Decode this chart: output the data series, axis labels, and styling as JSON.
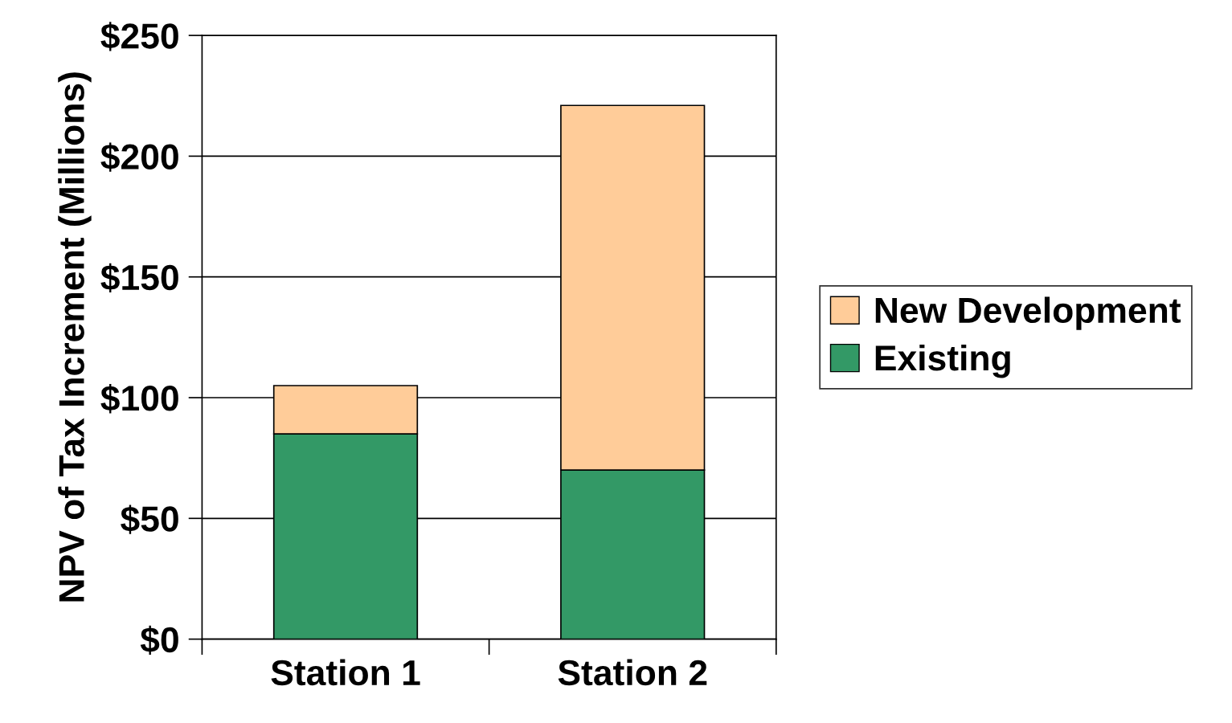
{
  "chart_data": {
    "type": "bar",
    "stacked": true,
    "ylabel": "NPV of Tax Increment (Millions)",
    "categories": [
      "Station 1",
      "Station 2"
    ],
    "series": [
      {
        "name": "Existing",
        "color": "#339966",
        "values": [
          85,
          70
        ]
      },
      {
        "name": "New Development",
        "color": "#ffcc99",
        "values": [
          20,
          151
        ]
      }
    ],
    "ylim": [
      0,
      250
    ],
    "yticks": [
      {
        "value": 0,
        "label": "$0"
      },
      {
        "value": 50,
        "label": "$50"
      },
      {
        "value": 100,
        "label": "$100"
      },
      {
        "value": 150,
        "label": "$150"
      },
      {
        "value": 200,
        "label": "$200"
      },
      {
        "value": 250,
        "label": "$250"
      }
    ],
    "grid": "y",
    "legend": "right"
  }
}
